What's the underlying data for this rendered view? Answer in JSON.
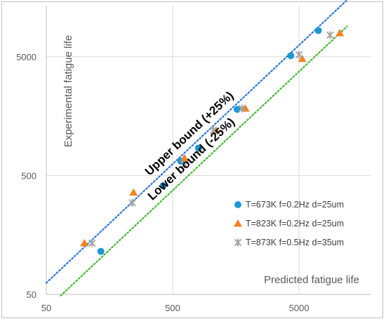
{
  "chart_data": {
    "type": "scatter",
    "x_scale": "log",
    "y_scale": "log",
    "xlim": [
      50,
      15000
    ],
    "ylim": [
      50,
      15000
    ],
    "x_ticks": [
      50,
      500,
      5000
    ],
    "y_ticks": [
      50,
      500,
      5000
    ],
    "x_tick_labels": [
      "50",
      "500",
      "5000"
    ],
    "y_tick_labels": [
      "50",
      "500",
      "5000"
    ],
    "xlabel": "Predicted fatigue life",
    "ylabel": "Experimental fatigue life",
    "grid": true,
    "legend_position": "bottom-right",
    "series": [
      {
        "name": "T=673K f=0.2Hz d=25um",
        "marker": "circle",
        "color": "#1f97d4",
        "points": [
          [
            135,
            115
          ],
          [
            420,
            410
          ],
          [
            580,
            660
          ],
          [
            800,
            850
          ],
          [
            1620,
            1800
          ],
          [
            4300,
            5100
          ],
          [
            7100,
            8300
          ]
        ]
      },
      {
        "name": "T=823K f=0.2Hz d=25um",
        "marker": "triangle",
        "color": "#f58220",
        "points": [
          [
            100,
            135
          ],
          [
            245,
            360
          ],
          [
            620,
            700
          ],
          [
            1100,
            1200
          ],
          [
            1880,
            1830
          ],
          [
            5300,
            4800
          ],
          [
            10500,
            7900
          ]
        ]
      },
      {
        "name": "T=873K f=0.5Hz d=35um",
        "marker": "star",
        "color": "#a5a5a5",
        "points": [
          [
            115,
            135
          ],
          [
            240,
            295
          ],
          [
            620,
            620
          ],
          [
            1050,
            1200
          ],
          [
            1770,
            1830
          ],
          [
            5000,
            5200
          ],
          [
            8800,
            7600
          ]
        ]
      }
    ],
    "reference_lines": [
      {
        "label": "Upper bound (+25%)",
        "color": "#2e75d6",
        "style": "dotted",
        "x": [
          50,
          12000
        ],
        "y": [
          62.5,
          15000
        ]
      },
      {
        "label": "Lower bound (-25%)",
        "color": "#46b837",
        "style": "dotted",
        "x": [
          65,
          12000
        ],
        "y": [
          48.75,
          9000
        ]
      }
    ]
  }
}
